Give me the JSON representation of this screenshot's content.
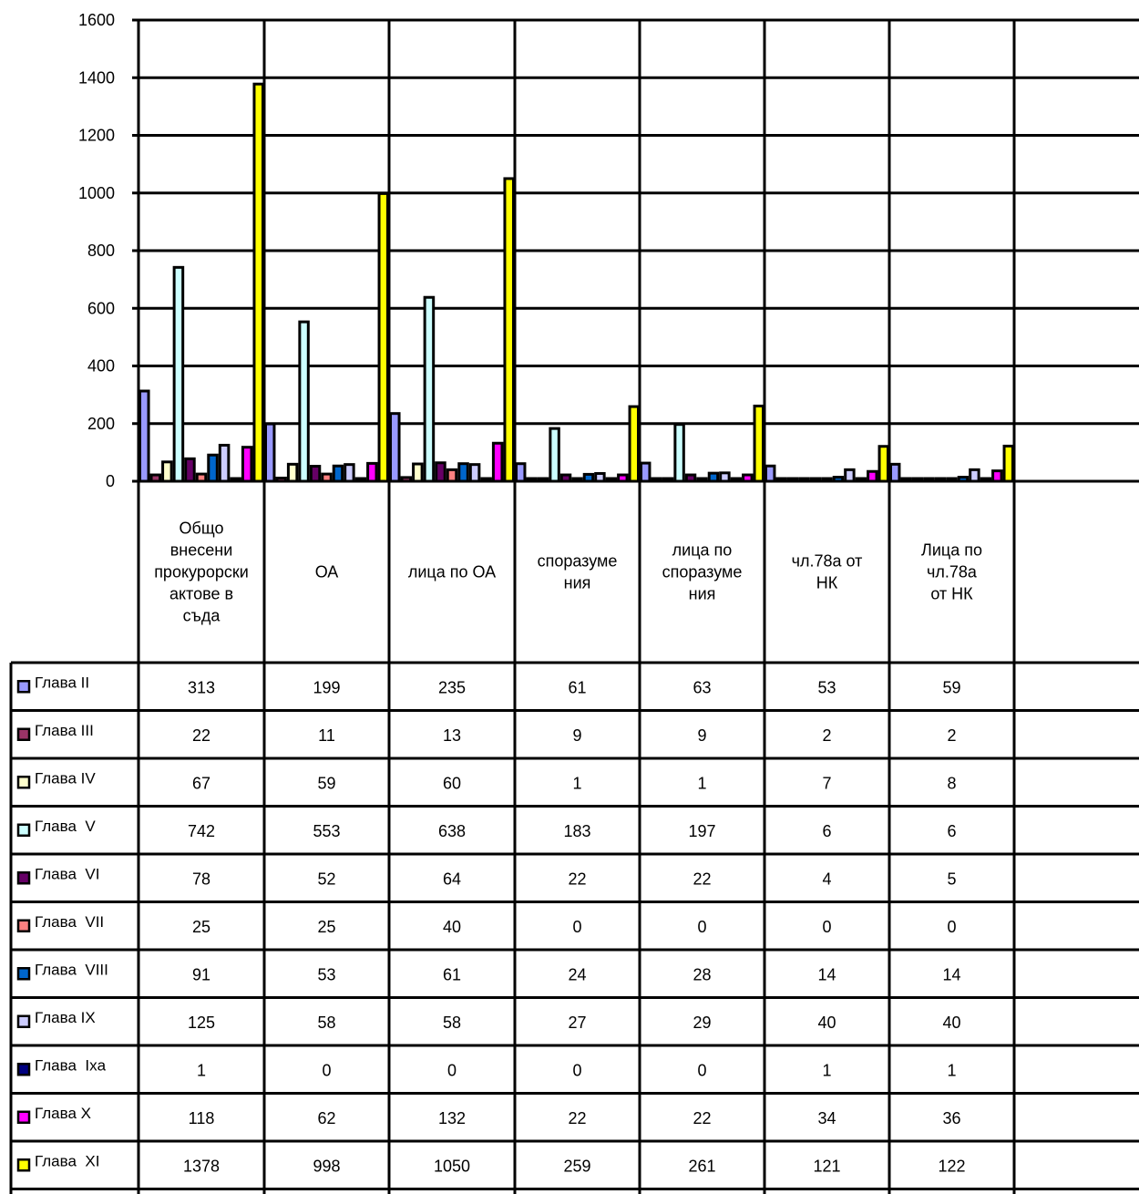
{
  "chart_data": {
    "type": "bar",
    "title": "",
    "xlabel": "",
    "ylabel": "",
    "ylim": [
      0,
      1600
    ],
    "yticks": [
      0,
      200,
      400,
      600,
      800,
      1000,
      1200,
      1400,
      1600
    ],
    "grid": true,
    "legend_position": "data table below chart",
    "categories": [
      "Общо внесени прокурорски актове в съда",
      "ОА",
      "лица по ОА",
      "споразуме ния",
      "лица по споразуме ния",
      "чл.78а от НК",
      "Лица по чл.78а от НК"
    ],
    "category_lines": [
      [
        "Общо",
        "внесени",
        "прокурорски",
        "актове в",
        "съда"
      ],
      [
        "ОА"
      ],
      [
        "лица по ОА"
      ],
      [
        "споразуме",
        "ния"
      ],
      [
        "лица по",
        "споразуме",
        "ния"
      ],
      [
        "чл.78а от",
        "НК"
      ],
      [
        "Лица по",
        "чл.78а",
        "от НК"
      ]
    ],
    "series": [
      {
        "name": "Глава II",
        "color": "#9999ff",
        "values": [
          313,
          199,
          235,
          61,
          63,
          53,
          59
        ]
      },
      {
        "name": "Глава III",
        "color": "#993366",
        "values": [
          22,
          11,
          13,
          9,
          9,
          2,
          2
        ]
      },
      {
        "name": "Глава IV",
        "color": "#ffffcc",
        "values": [
          67,
          59,
          60,
          1,
          1,
          7,
          8
        ]
      },
      {
        "name": "Глава  V",
        "color": "#ccffff",
        "values": [
          742,
          553,
          638,
          183,
          197,
          6,
          6
        ]
      },
      {
        "name": "Глава  VI",
        "color": "#660066",
        "values": [
          78,
          52,
          64,
          22,
          22,
          4,
          5
        ]
      },
      {
        "name": "Глава  VII",
        "color": "#ff8080",
        "values": [
          25,
          25,
          40,
          0,
          0,
          0,
          0
        ]
      },
      {
        "name": "Глава  VIII",
        "color": "#0066cc",
        "values": [
          91,
          53,
          61,
          24,
          28,
          14,
          14
        ]
      },
      {
        "name": "Глава IX",
        "color": "#ccccff",
        "values": [
          125,
          58,
          58,
          27,
          29,
          40,
          40
        ]
      },
      {
        "name": "Глава  Ixa",
        "color": "#000080",
        "values": [
          1,
          0,
          0,
          0,
          0,
          1,
          1
        ]
      },
      {
        "name": "Глава X",
        "color": "#ff00ff",
        "values": [
          118,
          62,
          132,
          22,
          22,
          34,
          36
        ]
      },
      {
        "name": "Глава  XI",
        "color": "#ffff00",
        "values": [
          1378,
          998,
          1050,
          259,
          261,
          121,
          122
        ]
      }
    ]
  }
}
